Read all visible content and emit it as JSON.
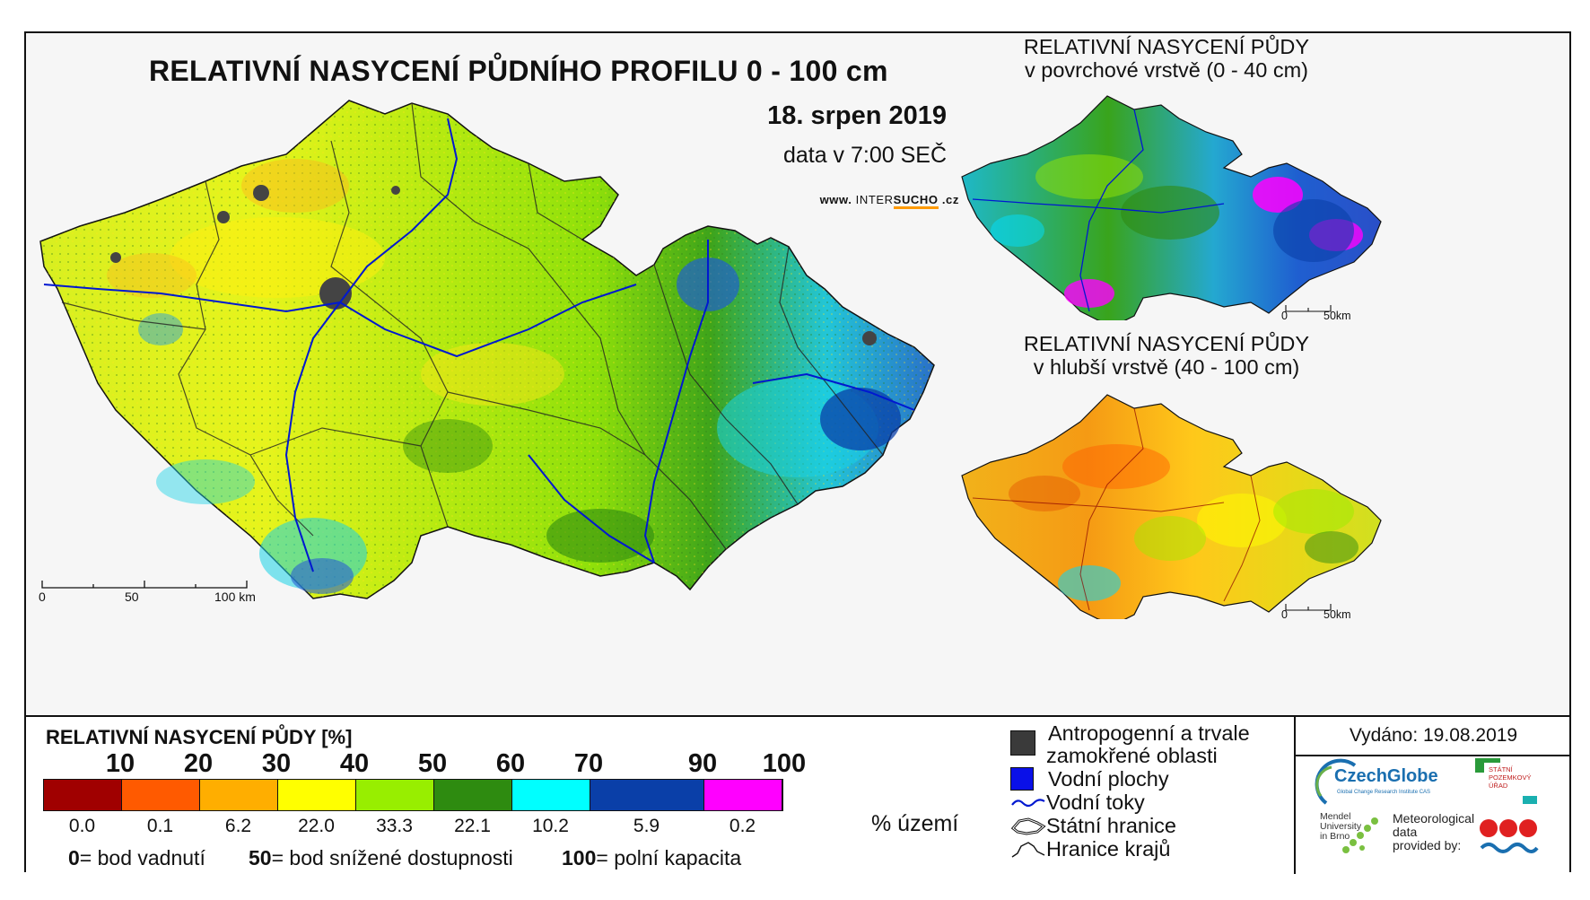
{
  "main_map": {
    "title": "RELATIVNÍ NASYCENÍ PŮDNÍHO PROFILU 0 - 100 cm",
    "date": "18. srpen 2019",
    "time": "data v 7:00 SEČ",
    "web_prefix": "www.",
    "web_inter": "INTER",
    "web_sucho": "SUCHO",
    "web_suffix": ".cz",
    "scale": [
      "0",
      "50",
      "100 km"
    ]
  },
  "inset_top": {
    "title_line1": "RELATIVNÍ NASYCENÍ PŮDY",
    "title_line2": "v povrchové vrstvě (0 - 40 cm)",
    "scale": [
      "0",
      "50km"
    ]
  },
  "inset_bottom": {
    "title_line1": "RELATIVNÍ NASYCENÍ PŮDY",
    "title_line2": "v hlubší vrstvě (40 - 100 cm)",
    "scale": [
      "0",
      "50km"
    ]
  },
  "legend": {
    "title": "RELATIVNÍ NASYCENÍ PŮDY [%]",
    "ticks": [
      "10",
      "20",
      "30",
      "40",
      "50",
      "60",
      "70",
      "90",
      "100"
    ],
    "classes": [
      {
        "color": "#a00000",
        "pct": "0.0"
      },
      {
        "color": "#ff5a00",
        "pct": "0.1"
      },
      {
        "color": "#ffae00",
        "pct": "6.2"
      },
      {
        "color": "#ffff00",
        "pct": "22.0"
      },
      {
        "color": "#98ee00",
        "pct": "33.3"
      },
      {
        "color": "#2e8b10",
        "pct": "22.1"
      },
      {
        "color": "#00ffff",
        "pct": "10.2"
      },
      {
        "color": "#0a3fa8",
        "pct": "5.9"
      },
      {
        "color": "#ff00ff",
        "pct": "0.2"
      }
    ],
    "pct_unit": "% území",
    "def_0_num": "0",
    "def_0_text": "= bod vadnutí",
    "def_50_num": "50",
    "def_50_text": "= bod snížené dostupnosti",
    "def_100_num": "100",
    "def_100_text": "= polní kapacita"
  },
  "symbols": {
    "anthropogenic_line1": "Antropogenní a trvale",
    "anthropogenic_line2": "zamokřené oblasti",
    "water_bodies": "Vodní plochy",
    "rivers": "Vodní toky",
    "state_border": "Státní hranice",
    "region_border": "Hranice krajů"
  },
  "issued": "Vydáno: 19.08.2019",
  "logos": {
    "czechglobe": "CzechGlobe",
    "czechglobe_sub": "Global Change Research Institute CAS",
    "spu_line1": "STÁTNÍ",
    "spu_line2": "POZEMKOVÝ",
    "spu_line3": "ÚŘAD",
    "mendel_line1": "Mendel",
    "mendel_line2": "University",
    "mendel_line3": "in Brno",
    "met_line1": "Meteorological",
    "met_line2": "data",
    "met_line3": "provided by:"
  }
}
